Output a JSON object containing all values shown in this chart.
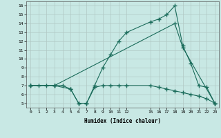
{
  "xlabel": "Humidex (Indice chaleur)",
  "background_color": "#c8e8e4",
  "grid_color": "#b0c8c4",
  "line_color": "#1a6b5a",
  "xlim": [
    -0.5,
    23.5
  ],
  "ylim": [
    4.5,
    16.5
  ],
  "xtick_positions": [
    0,
    1,
    2,
    3,
    4,
    5,
    6,
    7,
    8,
    9,
    10,
    11,
    12,
    15,
    16,
    17,
    18,
    19,
    20,
    21,
    22,
    23
  ],
  "xtick_labels": [
    "0",
    "1",
    "2",
    "3",
    "4",
    "5",
    "6",
    "7",
    "8",
    "9",
    "10",
    "11",
    "12",
    "15",
    "16",
    "17",
    "18",
    "19",
    "20",
    "21",
    "22",
    "23"
  ],
  "yticks": [
    5,
    6,
    7,
    8,
    9,
    10,
    11,
    12,
    13,
    14,
    15,
    16
  ],
  "line1_x": [
    0,
    1,
    2,
    3,
    4,
    5,
    6,
    7,
    8,
    9,
    10,
    11,
    12,
    15,
    16,
    17,
    18,
    19,
    20,
    21,
    22,
    23
  ],
  "line1_y": [
    7,
    7,
    7,
    7,
    7,
    6.6,
    5,
    5,
    6.8,
    7,
    7,
    7,
    7,
    7,
    6.8,
    6.6,
    6.4,
    6.2,
    6,
    5.8,
    5.5,
    5
  ],
  "line2_x": [
    0,
    3,
    5,
    6,
    7,
    8,
    9,
    10,
    11,
    12,
    15,
    16,
    17,
    18,
    19,
    20,
    21,
    22,
    23
  ],
  "line2_y": [
    7,
    7,
    6.6,
    5,
    5,
    7,
    9,
    10.5,
    12,
    13,
    14.2,
    14.5,
    15,
    16,
    11.5,
    9.5,
    7,
    6.8,
    5
  ],
  "line3_x": [
    0,
    3,
    18,
    19,
    23
  ],
  "line3_y": [
    7,
    7,
    14,
    11.3,
    5
  ]
}
